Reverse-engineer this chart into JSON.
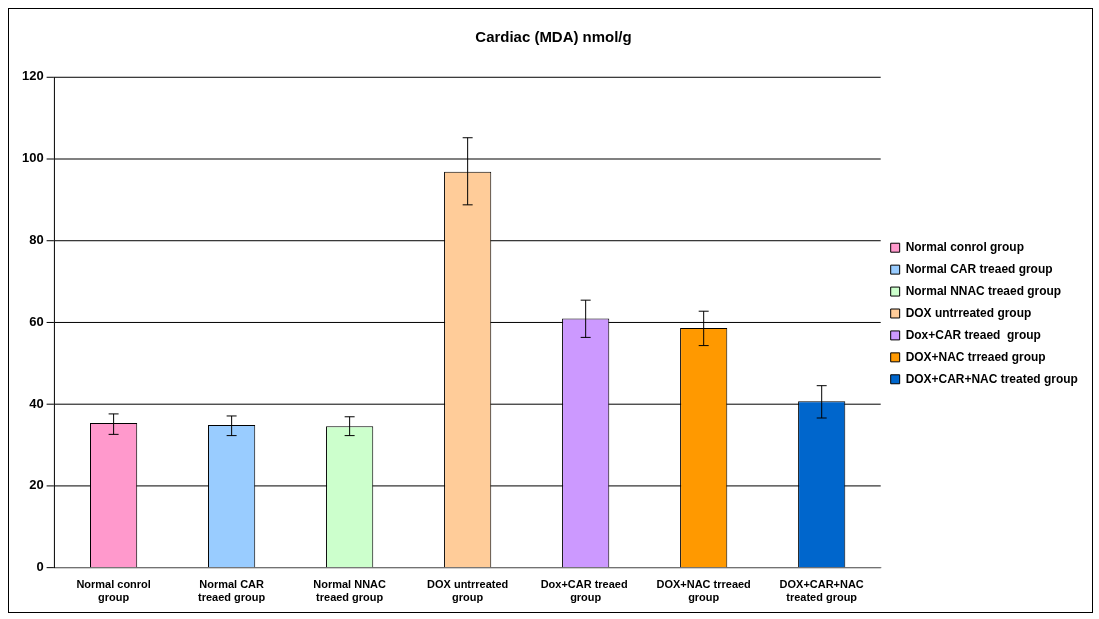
{
  "chart_data": {
    "type": "bar",
    "title": "Cardiac (MDA) nmol/g",
    "categories": [
      "Normal conrol group",
      "Normal CAR treaed group",
      "Normal NNAC treaed group",
      "DOX untrreated group",
      "Dox+CAR treaed  group",
      "DOX+NAC trreaed group",
      "DOX+CAR+NAC treated group"
    ],
    "series": [
      {
        "name": "Normal conrol group",
        "color": "#ff99cc",
        "values": [
          35.4,
          null,
          null,
          null,
          null,
          null,
          null
        ],
        "errors": [
          [
            32.6,
            37.6
          ],
          null,
          null,
          null,
          null,
          null,
          null
        ]
      },
      {
        "name": "Normal CAR treaed group",
        "color": "#99ccff",
        "values": [
          null,
          34.9,
          null,
          null,
          null,
          null,
          null
        ],
        "errors": [
          null,
          [
            32.3,
            37.1
          ],
          null,
          null,
          null,
          null,
          null
        ]
      },
      {
        "name": "Normal NNAC treaed group",
        "color": "#ccffcc",
        "values": [
          null,
          null,
          34.6,
          null,
          null,
          null,
          null
        ],
        "errors": [
          null,
          null,
          [
            32.3,
            36.9
          ],
          null,
          null,
          null,
          null
        ]
      },
      {
        "name": "DOX untrreated group",
        "color": "#ffcc99",
        "values": [
          null,
          null,
          null,
          96.8,
          null,
          null,
          null
        ],
        "errors": [
          null,
          null,
          null,
          [
            88.7,
            105.1
          ],
          null,
          null,
          null
        ]
      },
      {
        "name": "Dox+CAR treaed  group",
        "color": "#cc99ff",
        "values": [
          null,
          null,
          null,
          null,
          60.9,
          null,
          null
        ],
        "errors": [
          null,
          null,
          null,
          null,
          [
            56.3,
            65.4
          ],
          null,
          null
        ]
      },
      {
        "name": "DOX+NAC trreaed group",
        "color": "#ff9900",
        "values": [
          null,
          null,
          null,
          null,
          null,
          58.6,
          null
        ],
        "errors": [
          null,
          null,
          null,
          null,
          null,
          [
            54.3,
            62.7
          ],
          null
        ]
      },
      {
        "name": "DOX+CAR+NAC treated group",
        "color": "#0066cc",
        "values": [
          null,
          null,
          null,
          null,
          null,
          null,
          40.7
        ],
        "errors": [
          null,
          null,
          null,
          null,
          null,
          null,
          [
            36.6,
            44.5
          ]
        ]
      }
    ],
    "ylim": [
      0,
      120
    ],
    "yticks": [
      0,
      20,
      40,
      60,
      80,
      100,
      120
    ],
    "grid": "y",
    "legend": "right"
  }
}
